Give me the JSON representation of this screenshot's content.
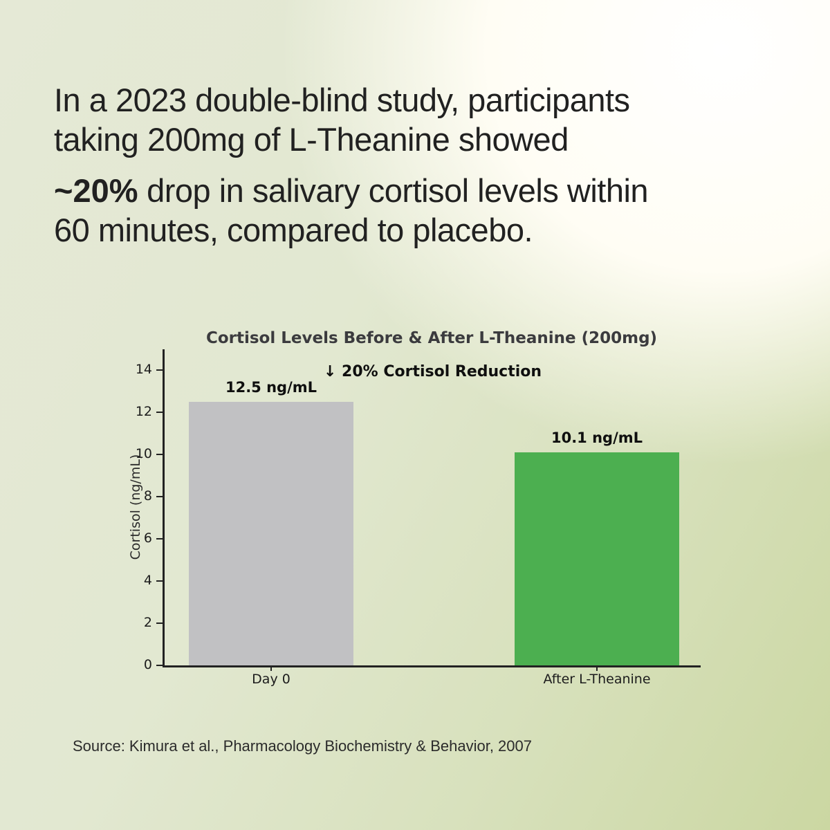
{
  "headline": {
    "line1": "In a 2023 double-blind study, participants",
    "line2": "taking 200mg of L-Theanine showed",
    "highlight": "~20%",
    "line3_rest": " drop in salivary cortisol levels within",
    "line4": "60 minutes, compared to placebo."
  },
  "source": "Source: Kimura et al., Pharmacology Biochemistry & Behavior, 2007",
  "chart_data": {
    "type": "bar",
    "title": "Cortisol Levels Before & After L-Theanine (200mg)",
    "annotation": "↓ 20% Cortisol Reduction",
    "categories": [
      "Day 0",
      "After L-Theanine"
    ],
    "values": [
      12.5,
      10.1
    ],
    "bar_labels": [
      "12.5 ng/mL",
      "10.1 ng/mL"
    ],
    "bar_colors": [
      "#c1c1c3",
      "#4caf50"
    ],
    "xlabel": "",
    "ylabel": "Cortisol (ng/mL)",
    "ylim": [
      0,
      15
    ],
    "yticks": [
      0,
      2,
      4,
      6,
      8,
      10,
      12,
      14
    ],
    "grid": false,
    "legend": false,
    "unit": "ng/mL"
  }
}
